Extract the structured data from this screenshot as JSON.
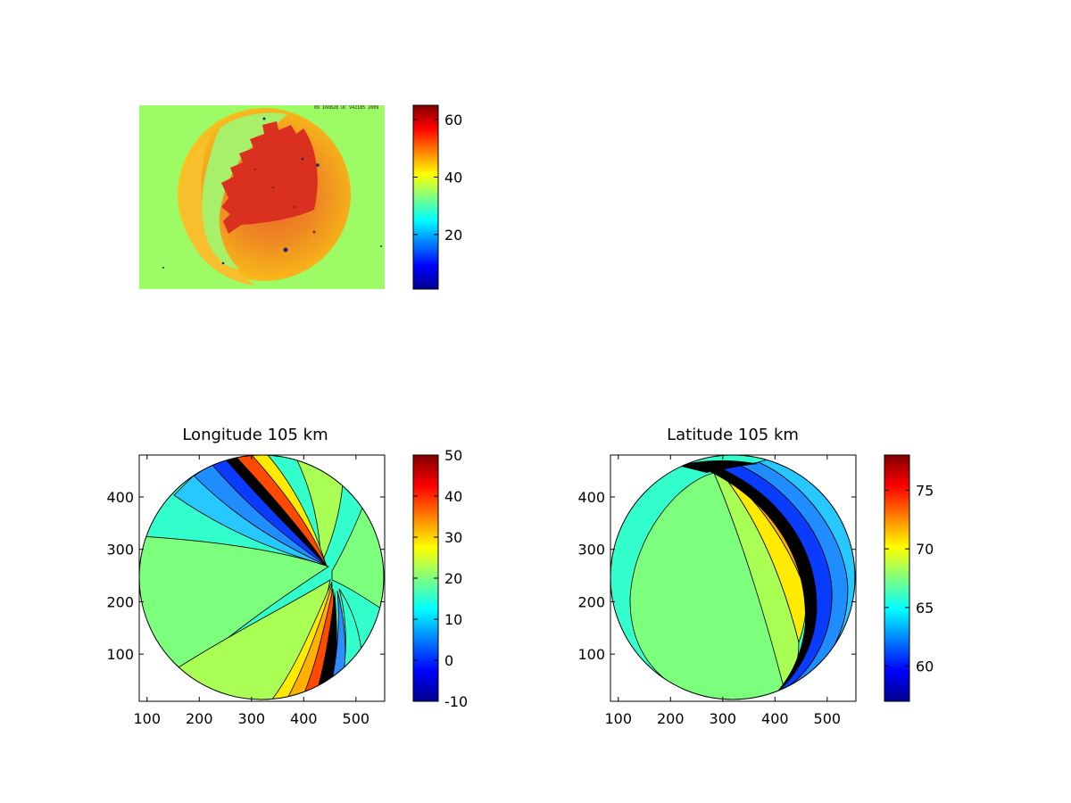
{
  "chart_data": [
    {
      "type": "heatmap",
      "title": "",
      "xlabel": "",
      "ylabel": "",
      "header_text": "09 160828 UC V42185 2009",
      "axes_visible": false,
      "colorbar": {
        "min": 1,
        "max": 65,
        "ticks": [
          20,
          40,
          60
        ],
        "colormap": "jet"
      },
      "content": "sky image with bright disk; values ~35 outside, ~45-60 inside the disk"
    },
    {
      "type": "heatmap",
      "title": "Longitude 105 km",
      "xlabel": "",
      "ylabel": "",
      "xlim": [
        85,
        555
      ],
      "ylim": [
        10,
        480
      ],
      "xticks": [
        100,
        200,
        300,
        400,
        500
      ],
      "yticks": [
        100,
        200,
        300,
        400
      ],
      "colorbar": {
        "min": -10,
        "max": 50,
        "ticks": [
          -10,
          0,
          10,
          20,
          30,
          40,
          50
        ],
        "colormap": "jet"
      },
      "disk_center": [
        320,
        245
      ],
      "disk_radius": 235,
      "contour_style": "filled contours with black edges"
    },
    {
      "type": "heatmap",
      "title": "Latitude 105 km",
      "xlabel": "",
      "ylabel": "",
      "xlim": [
        85,
        555
      ],
      "ylim": [
        10,
        480
      ],
      "xticks": [
        100,
        200,
        300,
        400,
        500
      ],
      "yticks": [
        100,
        200,
        300,
        400
      ],
      "colorbar": {
        "min": 57,
        "max": 78,
        "ticks": [
          60,
          65,
          70,
          75
        ],
        "colormap": "jet"
      },
      "disk_center": [
        320,
        245
      ],
      "disk_radius": 235,
      "contour_style": "filled contours with black edges"
    }
  ]
}
